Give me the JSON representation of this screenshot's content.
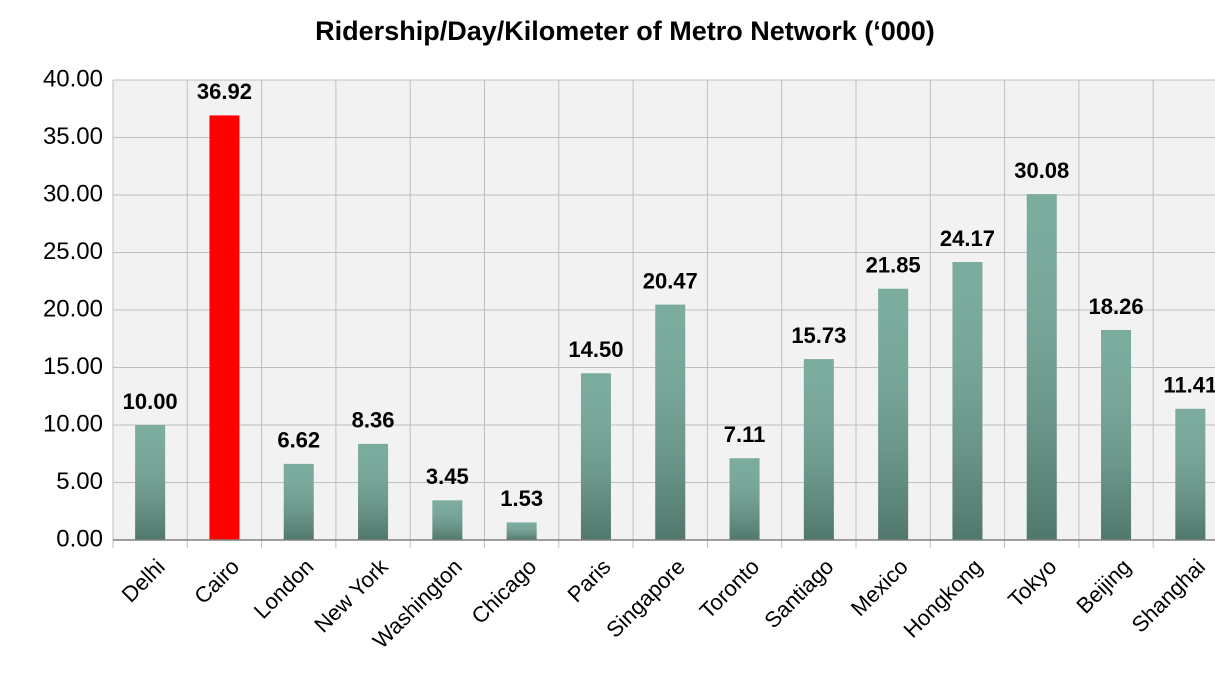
{
  "chart_data": {
    "type": "bar",
    "title": "Ridership/Day/Kilometer of Metro Network (‘000)",
    "categories": [
      "Delhi",
      "Cairo",
      "London",
      "New York",
      "Washington",
      "Chicago",
      "Paris",
      "Singapore",
      "Toronto",
      "Santiago",
      "Mexico",
      "Hongkong",
      "Tokyo",
      "Beijing",
      "Shanghai"
    ],
    "values": [
      10.0,
      36.92,
      6.62,
      8.36,
      3.45,
      1.53,
      14.5,
      20.47,
      7.11,
      15.73,
      21.85,
      24.17,
      30.08,
      18.26,
      11.41
    ],
    "value_labels": [
      "10.00",
      "36.92",
      "6.62",
      "8.36",
      "3.45",
      "1.53",
      "14.50",
      "20.47",
      "7.11",
      "15.73",
      "21.85",
      "24.17",
      "30.08",
      "18.26",
      "11.41"
    ],
    "colors": [
      "#6fa596",
      "#ff0000",
      "#6fa596",
      "#6fa596",
      "#6fa596",
      "#6fa596",
      "#6fa596",
      "#6fa596",
      "#6fa596",
      "#6fa596",
      "#6fa596",
      "#6fa596",
      "#6fa596",
      "#6fa596",
      "#6fa596"
    ],
    "ylim": [
      0,
      40
    ],
    "yticks": [
      {
        "value": 0,
        "label": "0.00"
      },
      {
        "value": 5,
        "label": "5.00"
      },
      {
        "value": 10,
        "label": "10.00"
      },
      {
        "value": 15,
        "label": "15.00"
      },
      {
        "value": 20,
        "label": "20.00"
      },
      {
        "value": 25,
        "label": "25.00"
      },
      {
        "value": 30,
        "label": "30.00"
      },
      {
        "value": 35,
        "label": "35.00"
      },
      {
        "value": 40,
        "label": "40.00"
      }
    ],
    "grid": true
  }
}
